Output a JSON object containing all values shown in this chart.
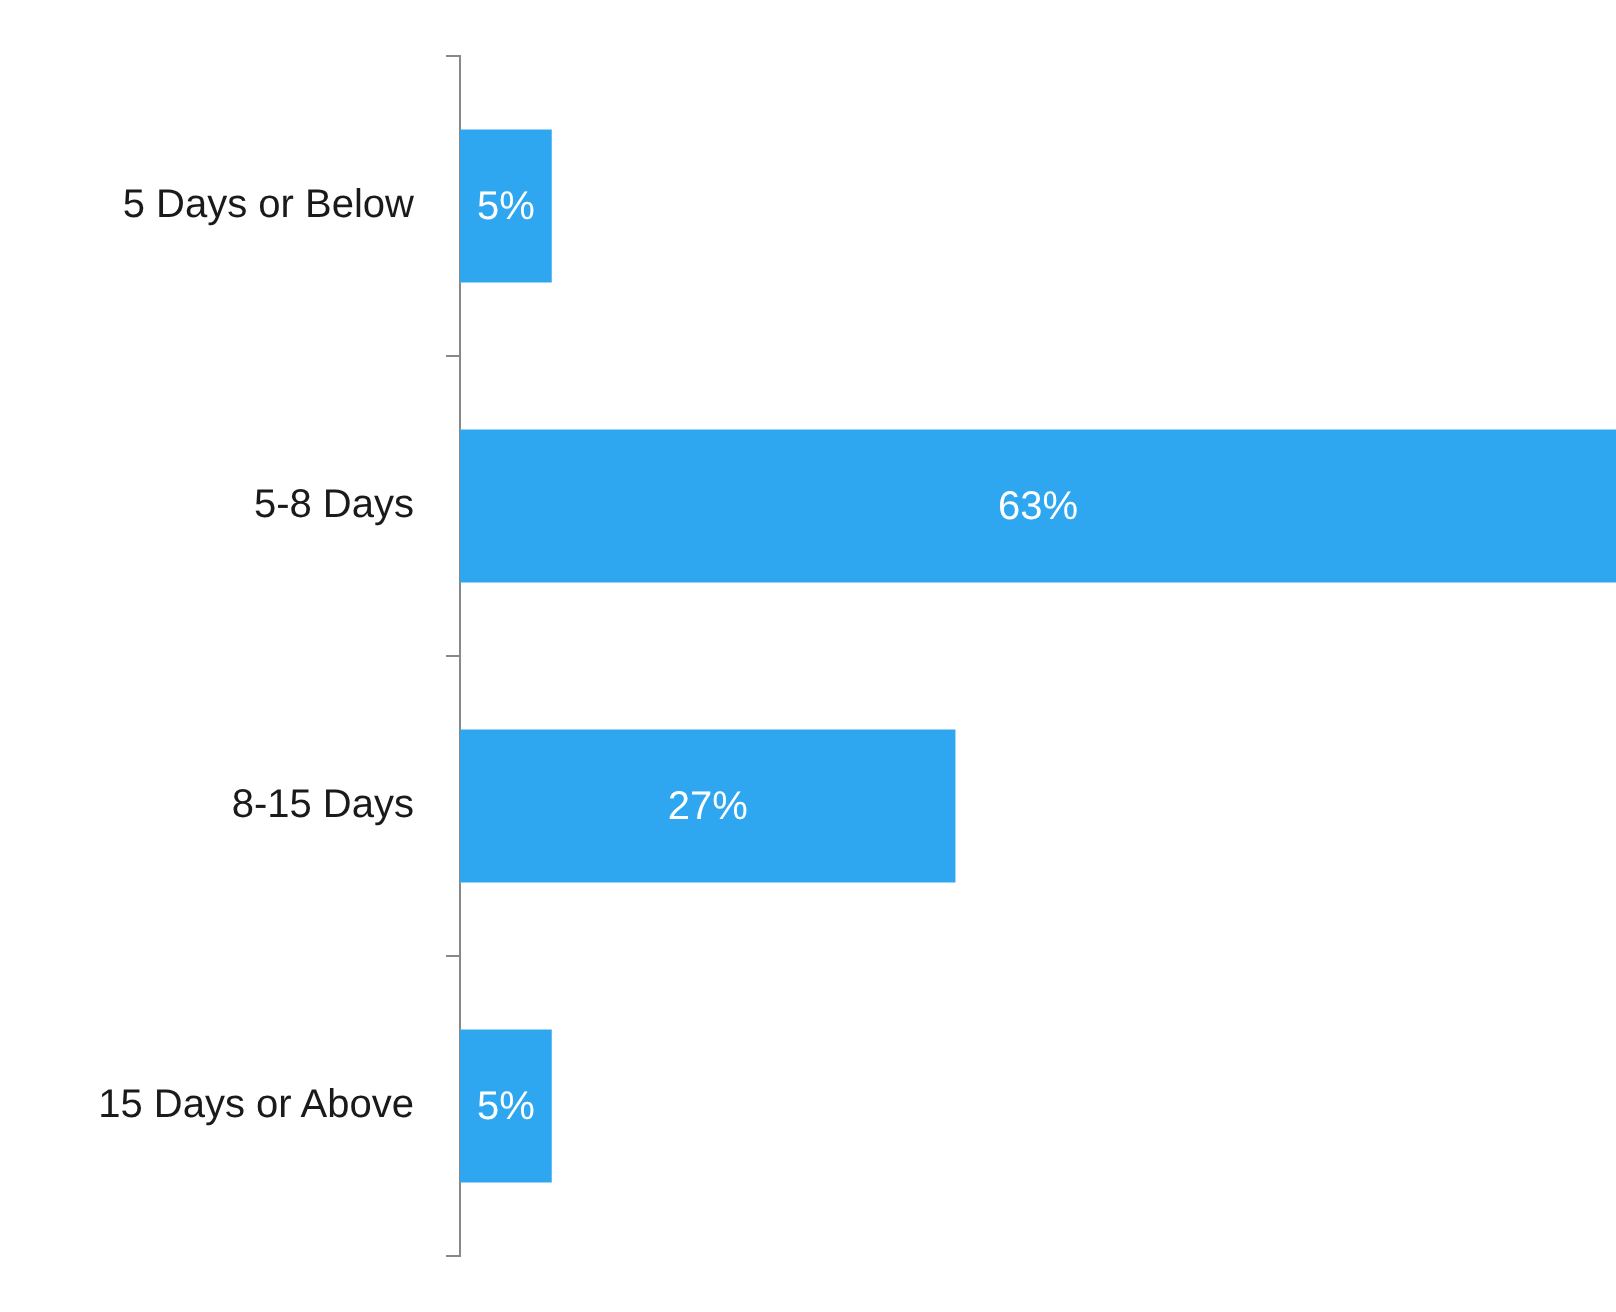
{
  "chart_data": {
    "type": "bar",
    "orientation": "horizontal",
    "relative": false,
    "categories": [
      "5 Days or Below",
      "5-8 Days",
      "8-15 Days",
      "15 Days or Above"
    ],
    "values": [
      5,
      63,
      27,
      5
    ],
    "color": "#2ea7f0",
    "value_labels": [
      "5%",
      "63%",
      "27%",
      "5%"
    ]
  }
}
